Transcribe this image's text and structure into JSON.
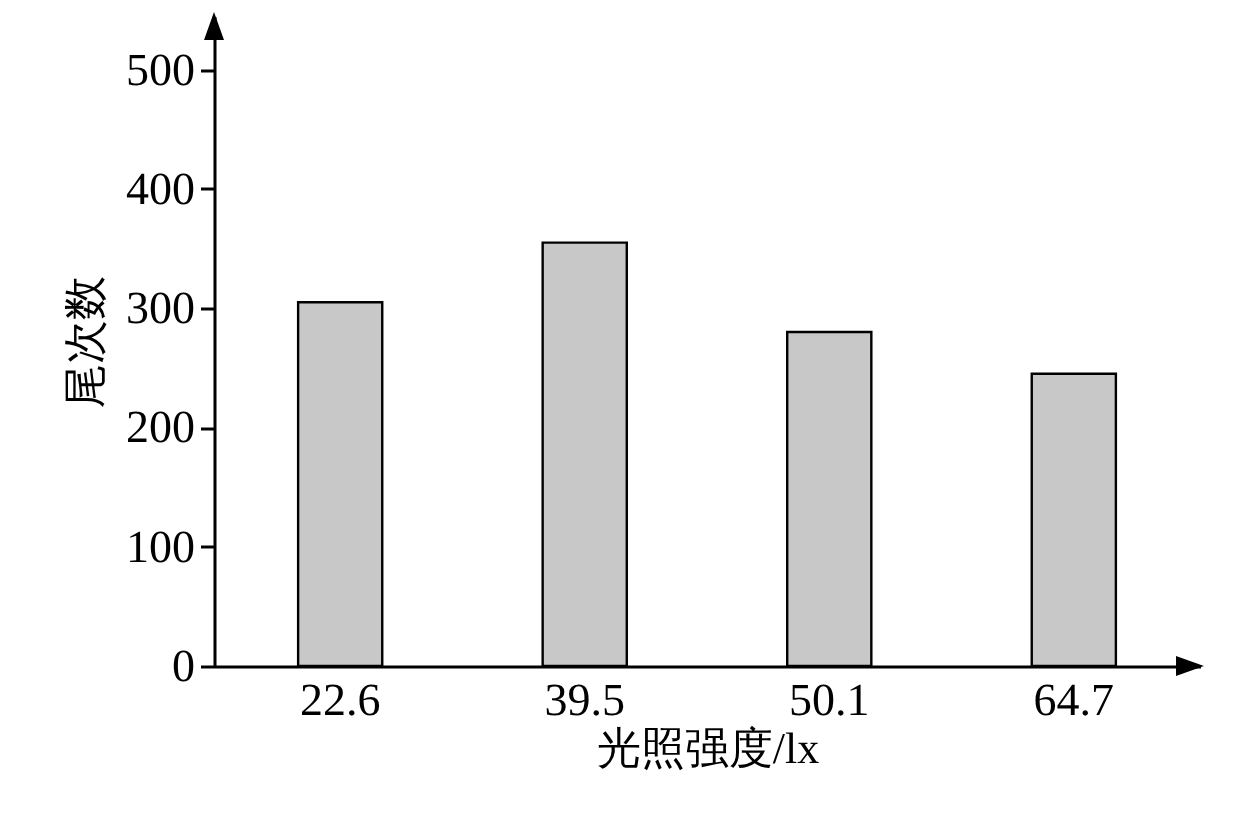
{
  "chart_data": {
    "type": "bar",
    "xlabel": "光照强度/lx",
    "ylabel": "尾次数",
    "categories": [
      "22.6",
      "39.5",
      "50.1",
      "64.7"
    ],
    "values": [
      305,
      355,
      280,
      245
    ],
    "color": "#c8c8c8",
    "ylim": [
      0,
      545
    ],
    "yticks": [
      0,
      100,
      200,
      300,
      400,
      500
    ],
    "grid": false
  }
}
